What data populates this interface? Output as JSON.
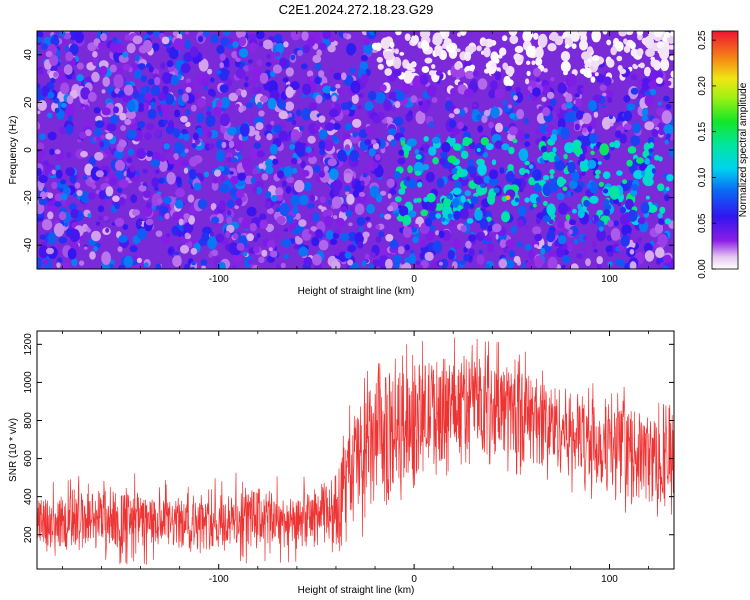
{
  "title": "C2E1.2024.272.18.23.G29",
  "chart_data": [
    {
      "type": "heatmap",
      "xlabel": "Height of straight line (km)",
      "ylabel": "Frequency (Hz)",
      "xlim": [
        -193,
        133
      ],
      "ylim": [
        -50,
        50
      ],
      "x_ticks": [
        -100,
        0,
        100
      ],
      "y_ticks": [
        -40,
        -20,
        0,
        20,
        40
      ],
      "colorbar": {
        "label": "Normalized spectral amplitude",
        "range": [
          0,
          0.26
        ],
        "ticks": [
          "0.00",
          "0.05",
          "0.10",
          "0.15",
          "0.20",
          "0.25"
        ],
        "colormap": "rainbow (purple → blue → cyan → green → yellow → red)"
      },
      "features": [
        {
          "x_range": [
            -193,
            -30
          ],
          "freq_range": [
            -50,
            50
          ],
          "amplitude": [
            0.03,
            0.08
          ]
        },
        {
          "x_range": [
            -10,
            133
          ],
          "freq_range": [
            -30,
            5
          ],
          "amplitude": [
            0.08,
            0.14
          ],
          "peak": 0.22
        },
        {
          "x_range": [
            -20,
            133
          ],
          "freq_range": [
            25,
            50
          ],
          "amplitude": [
            0.0,
            0.01
          ]
        }
      ]
    },
    {
      "type": "line",
      "xlabel": "Height of straight line (km)",
      "ylabel": "SNR (10 * v/v)",
      "xlim": [
        -193,
        133
      ],
      "ylim": [
        20,
        1270
      ],
      "x_ticks": [
        -100,
        0,
        100
      ],
      "y_ticks": [
        200,
        400,
        600,
        800,
        1000,
        1200
      ],
      "color": "#ee3333",
      "envelope": [
        {
          "x": -193,
          "low": 120,
          "high": 380
        },
        {
          "x": -160,
          "low": 120,
          "high": 450
        },
        {
          "x": -130,
          "low": 120,
          "high": 380
        },
        {
          "x": -100,
          "low": 120,
          "high": 380
        },
        {
          "x": -80,
          "low": 130,
          "high": 450
        },
        {
          "x": -60,
          "low": 130,
          "high": 380
        },
        {
          "x": -40,
          "low": 140,
          "high": 520
        },
        {
          "x": -30,
          "low": 250,
          "high": 880
        },
        {
          "x": -20,
          "low": 300,
          "high": 1000
        },
        {
          "x": -5,
          "low": 480,
          "high": 1080
        },
        {
          "x": 10,
          "low": 560,
          "high": 1120
        },
        {
          "x": 30,
          "low": 650,
          "high": 1150
        },
        {
          "x": 50,
          "low": 600,
          "high": 1080
        },
        {
          "x": 75,
          "low": 520,
          "high": 980
        },
        {
          "x": 100,
          "low": 420,
          "high": 880
        },
        {
          "x": 120,
          "low": 360,
          "high": 830
        },
        {
          "x": 133,
          "low": 330,
          "high": 800
        }
      ]
    }
  ]
}
